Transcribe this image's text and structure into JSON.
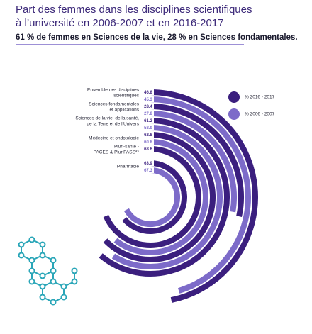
{
  "chart_data": {
    "type": "radial-bar",
    "title": [
      "Part des femmes dans les disciplines scientifiques",
      "à l’université en 2006-2007 et en 2016-2017"
    ],
    "subtitle": "61 % de femmes en Sciences de la vie, 28 % en Sciences fondamentales.",
    "categories": [
      [
        "Ensemble des disciplines",
        "scientifiques"
      ],
      [
        "Sciences fondamentales",
        "et applications"
      ],
      [
        "Sciences de la vie, de la santé,",
        "de la Terre et de l’Univers"
      ],
      [
        "Médecine et ondotologie"
      ],
      [
        "Pluri-santé -",
        "PACES & PluriPASS**"
      ],
      [
        "Pharmacie"
      ]
    ],
    "highlight_color": "#d0403a",
    "series": [
      {
        "name": "% 2016 - 2017",
        "color": "#3b1f7e",
        "values": [
          46.8,
          28.4,
          61.2,
          62.8,
          68.6,
          63.9
        ]
      },
      {
        "name": "% 2006 - 2007",
        "color": "#7d6bc9",
        "values": [
          45.3,
          27.8,
          58.9,
          60.8,
          null,
          67.3
        ]
      }
    ],
    "ylim": [
      0,
      100
    ]
  }
}
